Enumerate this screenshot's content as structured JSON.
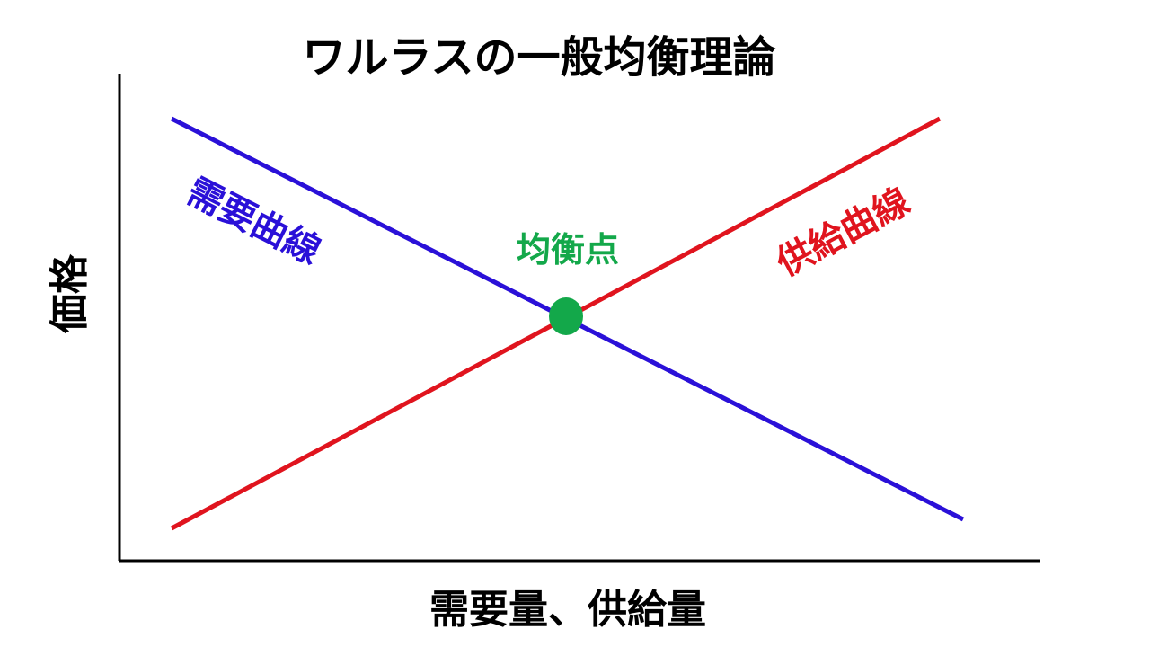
{
  "title": "ワルラスの一般均衡理論",
  "x_axis_label": "需要量、供給量",
  "y_axis_label": "価格",
  "demand_curve_label": "需要曲線",
  "supply_curve_label": "供給曲線",
  "equilibrium_label": "均衡点",
  "colors": {
    "demand": "#2a10d8",
    "supply": "#e0141e",
    "equilibrium": "#13a84a",
    "axis": "#000000",
    "text": "#000000"
  }
}
